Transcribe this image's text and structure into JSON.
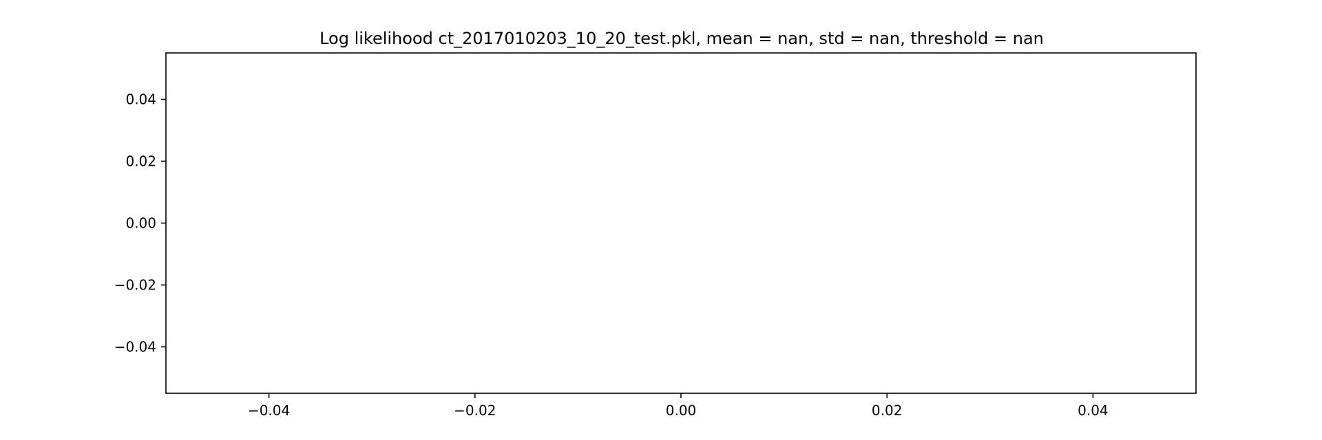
{
  "chart_data": {
    "type": "line",
    "title": "Log likelihood ct_2017010203_10_20_test.pkl, mean = nan, std = nan, threshold = nan",
    "xlim": [
      -0.05,
      0.05
    ],
    "ylim": [
      -0.055,
      0.055
    ],
    "x_ticks": [
      -0.04,
      -0.02,
      0.0,
      0.02,
      0.04
    ],
    "x_tick_labels": [
      "−0.04",
      "−0.02",
      "0.00",
      "0.02",
      "0.04"
    ],
    "y_ticks": [
      0.04,
      0.02,
      0.0,
      -0.02,
      -0.04
    ],
    "y_tick_labels": [
      "0.04",
      "0.02",
      "0.00",
      "−0.02",
      "−0.04"
    ],
    "series": [],
    "grid": false
  }
}
